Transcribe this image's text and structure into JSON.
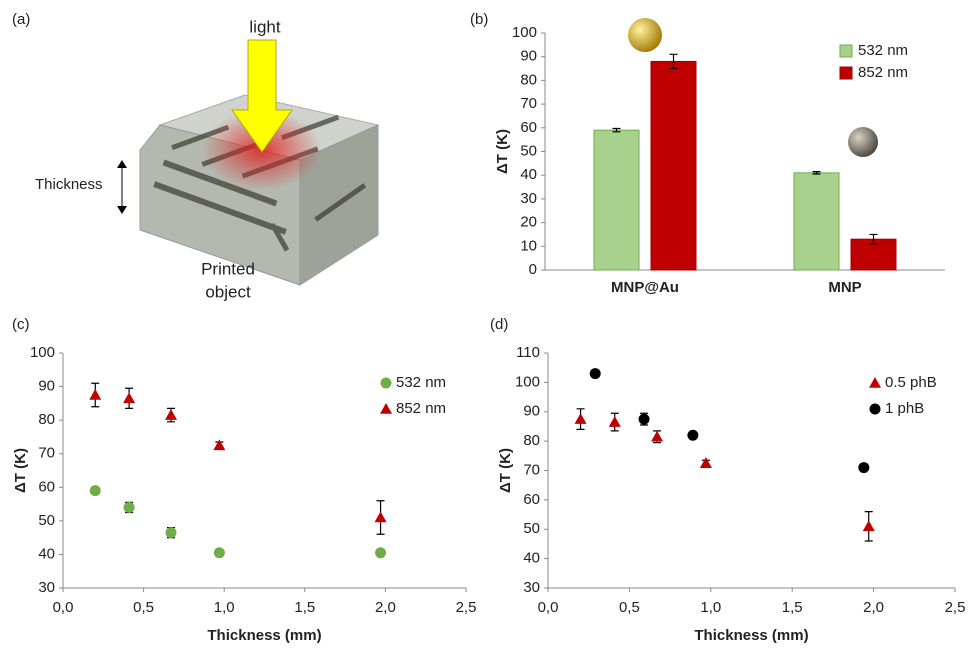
{
  "illustration": {
    "label": "(a)",
    "light": "light",
    "thickness": "Thickness",
    "object_line1": "Printed",
    "object_line2": "object"
  },
  "chart_data": [
    {
      "type": "bar",
      "label": "(b)",
      "ylabel": "ΔT (K)",
      "categories": [
        "MNP@Au",
        "MNP"
      ],
      "series": [
        {
          "name": "532 nm",
          "color": "#a9d18e",
          "edge": "#70ad47",
          "values": [
            59,
            41
          ],
          "errors": [
            0.7,
            0.5
          ]
        },
        {
          "name": "852 nm",
          "color": "#c00000",
          "edge": "#a00000",
          "values": [
            88,
            13
          ],
          "errors": [
            3,
            2
          ]
        }
      ],
      "ylim": [
        0,
        100
      ],
      "yticks": [
        0,
        10,
        20,
        30,
        40,
        50,
        60,
        70,
        80,
        90,
        100
      ],
      "legend": "upper right"
    },
    {
      "type": "scatter",
      "label": "(c)",
      "xlabel": "Thickness (mm)",
      "ylabel": "ΔT (K)",
      "series": [
        {
          "name": "532 nm",
          "color": "#70ad47",
          "marker": "circle",
          "x": [
            0.2,
            0.41,
            0.67,
            0.97,
            1.97
          ],
          "values": [
            59,
            54,
            46.5,
            40.5,
            40.5
          ],
          "errors": [
            0.5,
            1.5,
            1.5,
            0.5,
            0.5
          ]
        },
        {
          "name": "852 nm",
          "color": "#c00000",
          "marker": "triangle",
          "x": [
            0.2,
            0.41,
            0.67,
            0.97,
            1.97
          ],
          "values": [
            87.5,
            86.5,
            81.5,
            72.5,
            51
          ],
          "errors": [
            3.5,
            3,
            2,
            1,
            5
          ]
        }
      ],
      "xlim": [
        0,
        2.5
      ],
      "xticks": [
        {
          "value": 0,
          "label": "0,0"
        },
        {
          "value": 0.5,
          "label": "0,5"
        },
        {
          "value": 1,
          "label": "1,0"
        },
        {
          "value": 1.5,
          "label": "1,5"
        },
        {
          "value": 2,
          "label": "2,0"
        },
        {
          "value": 2.5,
          "label": "2,5"
        }
      ],
      "ylim": [
        30,
        100
      ],
      "yticks": [
        30,
        40,
        50,
        60,
        70,
        80,
        90,
        100
      ],
      "legend": "upper right"
    },
    {
      "type": "scatter",
      "label": "(d)",
      "xlabel": "Thickness (mm)",
      "ylabel": "ΔT (K)",
      "series": [
        {
          "name": "0.5 phB",
          "color": "#c00000",
          "marker": "triangle",
          "x": [
            0.2,
            0.41,
            0.67,
            0.97,
            1.97
          ],
          "values": [
            87.5,
            86.5,
            81.5,
            72.5,
            51
          ],
          "errors": [
            3.5,
            3,
            2,
            1,
            5
          ]
        },
        {
          "name": "1 phB",
          "color": "#000000",
          "marker": "circle",
          "x": [
            0.29,
            0.59,
            0.89,
            1.94
          ],
          "values": [
            103,
            87.5,
            82,
            71
          ],
          "errors": [
            0.5,
            2,
            0.5,
            0.5
          ]
        }
      ],
      "xlim": [
        0,
        2.5
      ],
      "xticks": [
        {
          "value": 0,
          "label": "0,0"
        },
        {
          "value": 0.5,
          "label": "0,5"
        },
        {
          "value": 1,
          "label": "1,0"
        },
        {
          "value": 1.5,
          "label": "1,5"
        },
        {
          "value": 2,
          "label": "2,0"
        },
        {
          "value": 2.5,
          "label": "2,5"
        }
      ],
      "ylim": [
        30,
        110
      ],
      "yticks": [
        30,
        40,
        50,
        60,
        70,
        80,
        90,
        100,
        110
      ],
      "legend": "upper right"
    }
  ]
}
